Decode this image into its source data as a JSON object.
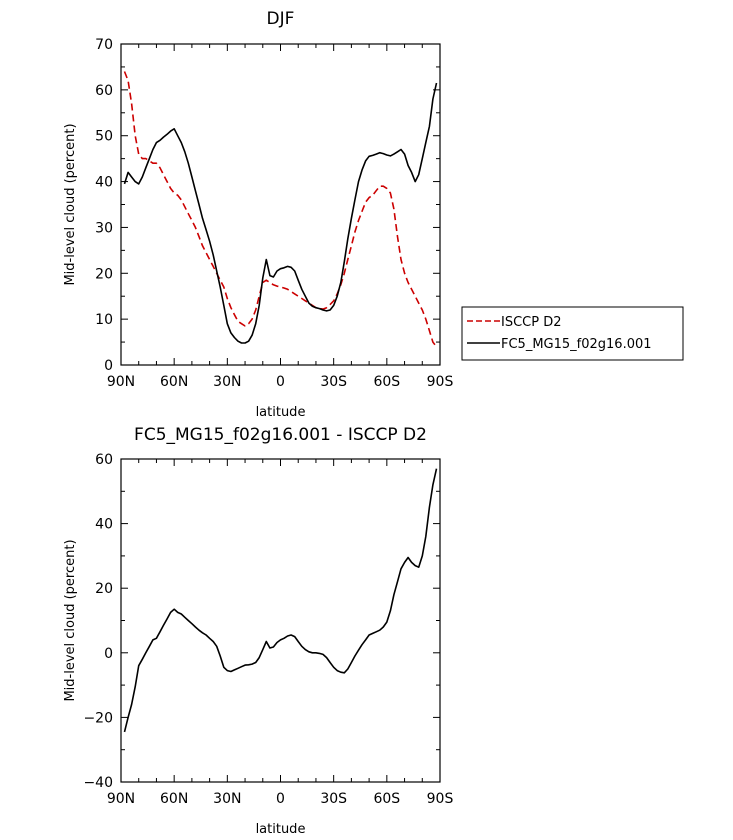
{
  "chart_data": [
    {
      "type": "line",
      "title": "DJF",
      "xlabel": "latitude",
      "ylabel": "Mid-level cloud (percent)",
      "xlim": [
        90,
        -90
      ],
      "ylim": [
        0,
        70
      ],
      "x_ticks": [
        90,
        60,
        30,
        0,
        -30,
        -60,
        -90
      ],
      "x_tick_labels": [
        "90N",
        "60N",
        "30N",
        "0",
        "30S",
        "60S",
        "90S"
      ],
      "y_ticks": [
        0,
        10,
        20,
        30,
        40,
        50,
        60,
        70
      ],
      "y_tick_labels": [
        "0",
        "10",
        "20",
        "30",
        "40",
        "50",
        "60",
        "70"
      ],
      "grid": false,
      "legend_position": "right",
      "series": [
        {
          "name": "ISCCP D2",
          "color": "#cc0000",
          "dash": "dashed",
          "x": [
            88,
            86,
            84,
            82,
            80,
            78,
            76,
            74,
            72,
            70,
            68,
            66,
            64,
            62,
            60,
            58,
            56,
            54,
            52,
            50,
            48,
            46,
            44,
            42,
            40,
            38,
            36,
            34,
            32,
            30,
            28,
            26,
            24,
            22,
            20,
            18,
            16,
            14,
            12,
            10,
            8,
            6,
            4,
            2,
            0,
            -2,
            -4,
            -6,
            -8,
            -10,
            -12,
            -14,
            -16,
            -18,
            -20,
            -22,
            -24,
            -26,
            -28,
            -30,
            -32,
            -34,
            -36,
            -38,
            -40,
            -42,
            -44,
            -46,
            -48,
            -50,
            -52,
            -54,
            -56,
            -58,
            -60,
            -62,
            -64,
            -66,
            -68,
            -70,
            -72,
            -74,
            -76,
            -78,
            -80,
            -82,
            -84,
            -86,
            -88
          ],
          "values": [
            64,
            62,
            57,
            50,
            46,
            45,
            45,
            44.5,
            44,
            44,
            43,
            41.5,
            40,
            38.5,
            37.5,
            37,
            36,
            34.5,
            33,
            31.5,
            30,
            28,
            26,
            24.5,
            23,
            21.5,
            20,
            18.5,
            17,
            14.5,
            12.5,
            11,
            9.5,
            9,
            8.5,
            9,
            10,
            12,
            15,
            18,
            18.5,
            18,
            17.5,
            17.2,
            17,
            16.8,
            16.5,
            16,
            15.5,
            15,
            14.5,
            14,
            13.5,
            13,
            12.5,
            12.3,
            12.2,
            12.5,
            13.2,
            14,
            15.5,
            17.5,
            20,
            23,
            26,
            29,
            31.5,
            33.5,
            35.5,
            36.5,
            37,
            38,
            39,
            39,
            38.5,
            37.5,
            34,
            28,
            23,
            20,
            18,
            16.5,
            15,
            13.5,
            12,
            10,
            7.5,
            5,
            4
          ]
        },
        {
          "name": "FC5_MG15_f02g16.001",
          "color": "#000000",
          "dash": "solid",
          "x": [
            88,
            86,
            84,
            82,
            80,
            78,
            76,
            74,
            72,
            70,
            68,
            66,
            64,
            62,
            60,
            58,
            56,
            54,
            52,
            50,
            48,
            46,
            44,
            42,
            40,
            38,
            36,
            34,
            32,
            30,
            28,
            26,
            24,
            22,
            20,
            18,
            16,
            14,
            12,
            10,
            8,
            6,
            4,
            2,
            0,
            -2,
            -4,
            -6,
            -8,
            -10,
            -12,
            -14,
            -16,
            -18,
            -20,
            -22,
            -24,
            -26,
            -28,
            -30,
            -32,
            -34,
            -36,
            -38,
            -40,
            -42,
            -44,
            -46,
            -48,
            -50,
            -52,
            -54,
            -56,
            -58,
            -60,
            -62,
            -64,
            -66,
            -68,
            -70,
            -72,
            -74,
            -76,
            -78,
            -80,
            -82,
            -84,
            -86,
            -88
          ],
          "values": [
            39.5,
            42,
            41,
            40,
            39.5,
            41,
            43,
            45,
            47,
            48.5,
            49,
            49.7,
            50.3,
            51,
            51.5,
            50,
            48.5,
            46.5,
            44,
            41,
            38,
            35,
            32,
            29.5,
            27,
            24,
            20.5,
            17,
            13,
            9,
            7,
            6,
            5.2,
            4.8,
            4.8,
            5.2,
            6.5,
            9,
            13,
            19,
            23,
            19.5,
            19.2,
            20.5,
            21,
            21.2,
            21.5,
            21.3,
            20.5,
            18.5,
            16.5,
            15,
            13.5,
            12.8,
            12.5,
            12.3,
            12,
            11.8,
            12,
            13,
            15,
            18,
            22.5,
            27.5,
            32,
            36,
            40,
            42.5,
            44.5,
            45.5,
            45.7,
            46,
            46.3,
            46.1,
            45.8,
            45.6,
            46,
            46.5,
            47,
            46,
            43.5,
            42,
            40,
            41.5,
            45,
            48.5,
            52,
            58,
            61.5
          ]
        }
      ]
    },
    {
      "type": "line",
      "title": "FC5_MG15_f02g16.001 - ISCCP D2",
      "xlabel": "latitude",
      "ylabel": "Mid-level cloud (percent)",
      "xlim": [
        90,
        -90
      ],
      "ylim": [
        -40,
        60
      ],
      "x_ticks": [
        90,
        60,
        30,
        0,
        -30,
        -60,
        -90
      ],
      "x_tick_labels": [
        "90N",
        "60N",
        "30N",
        "0",
        "30S",
        "60S",
        "90S"
      ],
      "y_ticks": [
        -40,
        -20,
        0,
        20,
        40,
        60
      ],
      "y_tick_labels": [
        "−40",
        "−20",
        "0",
        "20",
        "40",
        "60"
      ],
      "grid": false,
      "series": [
        {
          "color": "#000000",
          "dash": "solid",
          "x": [
            88,
            86,
            84,
            82,
            80,
            78,
            76,
            74,
            72,
            70,
            68,
            66,
            64,
            62,
            60,
            58,
            56,
            54,
            52,
            50,
            48,
            46,
            44,
            42,
            40,
            38,
            36,
            34,
            32,
            30,
            28,
            26,
            24,
            22,
            20,
            18,
            16,
            14,
            12,
            10,
            8,
            6,
            4,
            2,
            0,
            -2,
            -4,
            -6,
            -8,
            -10,
            -12,
            -14,
            -16,
            -18,
            -20,
            -22,
            -24,
            -26,
            -28,
            -30,
            -32,
            -34,
            -36,
            -38,
            -40,
            -42,
            -44,
            -46,
            -48,
            -50,
            -52,
            -54,
            -56,
            -58,
            -60,
            -62,
            -64,
            -66,
            -68,
            -70,
            -72,
            -74,
            -76,
            -78,
            -80,
            -82,
            -84,
            -86,
            -88
          ],
          "values": [
            -24.5,
            -20,
            -16,
            -10.5,
            -4,
            -2,
            0,
            2,
            4,
            4.5,
            6.5,
            8.5,
            10.5,
            12.5,
            13.5,
            12.5,
            12,
            11,
            10,
            9,
            8,
            7,
            6.2,
            5.5,
            4.5,
            3.5,
            2,
            -1,
            -4.5,
            -5.5,
            -5.8,
            -5.3,
            -4.8,
            -4.3,
            -3.8,
            -3.7,
            -3.5,
            -3,
            -1.5,
            1,
            3.5,
            1.5,
            1.8,
            3.2,
            4,
            4.5,
            5.2,
            5.5,
            5,
            3.5,
            2,
            1,
            0.3,
            0,
            0,
            -0.2,
            -0.5,
            -1.5,
            -3,
            -4.5,
            -5.5,
            -6,
            -6.2,
            -5,
            -3,
            -1,
            0.8,
            2.5,
            4,
            5.5,
            6,
            6.5,
            7,
            8,
            9.5,
            13,
            18,
            22,
            26,
            28,
            29.5,
            28,
            27,
            26.5,
            30,
            36,
            45,
            52,
            57
          ]
        }
      ]
    }
  ]
}
